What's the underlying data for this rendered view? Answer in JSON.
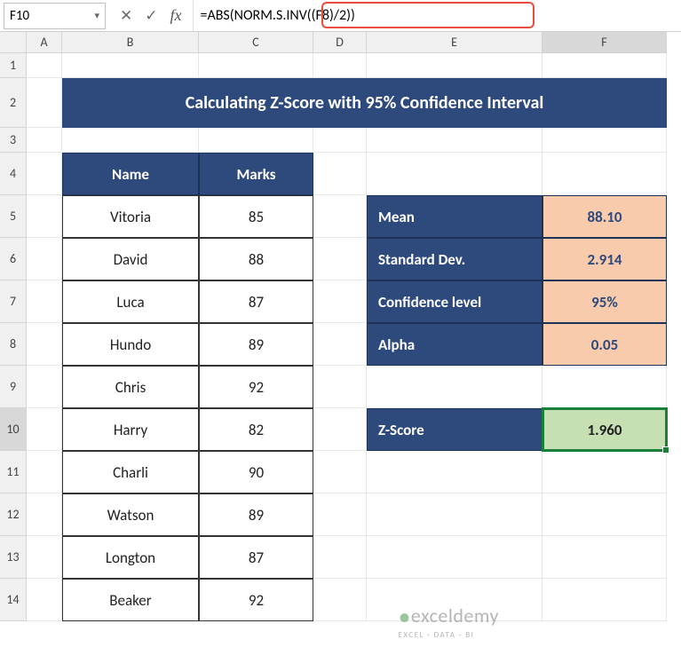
{
  "namebox": "F10",
  "formula": "=ABS(NORM.S.INV((F8)/2))",
  "columns": [
    "A",
    "B",
    "C",
    "D",
    "E",
    "F"
  ],
  "title": "Calculating Z-Score with 95% Confidence Interval",
  "table": {
    "headers": [
      "Name",
      "Marks"
    ],
    "rows": [
      [
        "Vitoria",
        "85"
      ],
      [
        "David",
        "88"
      ],
      [
        "Luca",
        "87"
      ],
      [
        "Hundo",
        "89"
      ],
      [
        "Chris",
        "92"
      ],
      [
        "Harry",
        "82"
      ],
      [
        "Charli",
        "90"
      ],
      [
        "Watson",
        "89"
      ],
      [
        "Longton",
        "87"
      ],
      [
        "Beaker",
        "92"
      ]
    ]
  },
  "stats": [
    {
      "label": "Mean",
      "value": "88.10"
    },
    {
      "label": "Standard Dev.",
      "value": "2.914"
    },
    {
      "label": "Confidence level",
      "value": "95%"
    },
    {
      "label": "Alpha",
      "value": "0.05"
    }
  ],
  "zscore": {
    "label": "Z-Score",
    "value": "1.960"
  },
  "colors": {
    "header": "#2e4a7d",
    "stat_value": "#f8cbad",
    "z_value": "#c6e0b4",
    "highlight": "#e74c3c",
    "selection": "#1a7f37"
  },
  "watermark": {
    "brand": "exceldemy",
    "tag": "EXCEL · DATA · BI"
  }
}
